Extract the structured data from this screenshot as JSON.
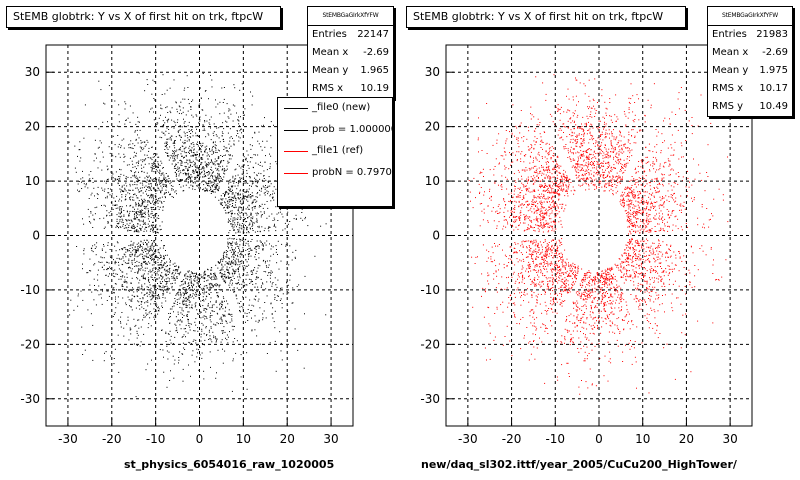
{
  "chart_data": [
    {
      "type": "scatter",
      "title": "StEMB globtrk: Y vs X of first hit on trk, ftpcW",
      "stats": {
        "header": "StEMBGaGIrkXfYFW",
        "rows": [
          {
            "label": "Entries",
            "value": "22147"
          },
          {
            "label": "Mean x",
            "value": "-2.69"
          },
          {
            "label": "Mean y",
            "value": "1.965"
          },
          {
            "label": "RMS x",
            "value": "10.19"
          }
        ]
      },
      "xlim": [
        -35,
        35
      ],
      "ylim": [
        -35,
        35
      ],
      "xticks": [
        -30,
        -20,
        -10,
        0,
        10,
        20,
        30
      ],
      "yticks": [
        -30,
        -20,
        -10,
        0,
        10,
        20,
        30
      ],
      "grid": true,
      "color": "#000000",
      "xlabel": "st_physics_6054016_raw_1020005",
      "legend": {
        "placement": "top-right",
        "items": [
          {
            "label": "_file0 (new)",
            "color": "#000000"
          },
          {
            "label": "prob = 1.000000",
            "color": "#000000"
          },
          {
            "label": "_file1 (ref)",
            "color": "#ff0000"
          },
          {
            "label": "probN = 0.79708",
            "color": "#ff0000"
          }
        ]
      }
    },
    {
      "type": "scatter",
      "title": "StEMB globtrk: Y vs X of first hit on trk, ftpcW",
      "stats": {
        "header": "StEMBGaGIrkXfYFW",
        "rows": [
          {
            "label": "Entries",
            "value": "21983"
          },
          {
            "label": "Mean x",
            "value": "-2.69"
          },
          {
            "label": "Mean y",
            "value": "1.975"
          },
          {
            "label": "RMS x",
            "value": "10.17"
          },
          {
            "label": "RMS y",
            "value": "10.49"
          }
        ]
      },
      "xlim": [
        -35,
        35
      ],
      "ylim": [
        -35,
        35
      ],
      "xticks": [
        -30,
        -20,
        -10,
        0,
        10,
        20,
        30
      ],
      "yticks": [
        -30,
        -20,
        -10,
        0,
        10,
        20,
        30
      ],
      "grid": true,
      "color": "#ff0000",
      "xlabel": "new/daq_sl302.ittf/year_2005/CuCu200_HighTower/"
    }
  ]
}
